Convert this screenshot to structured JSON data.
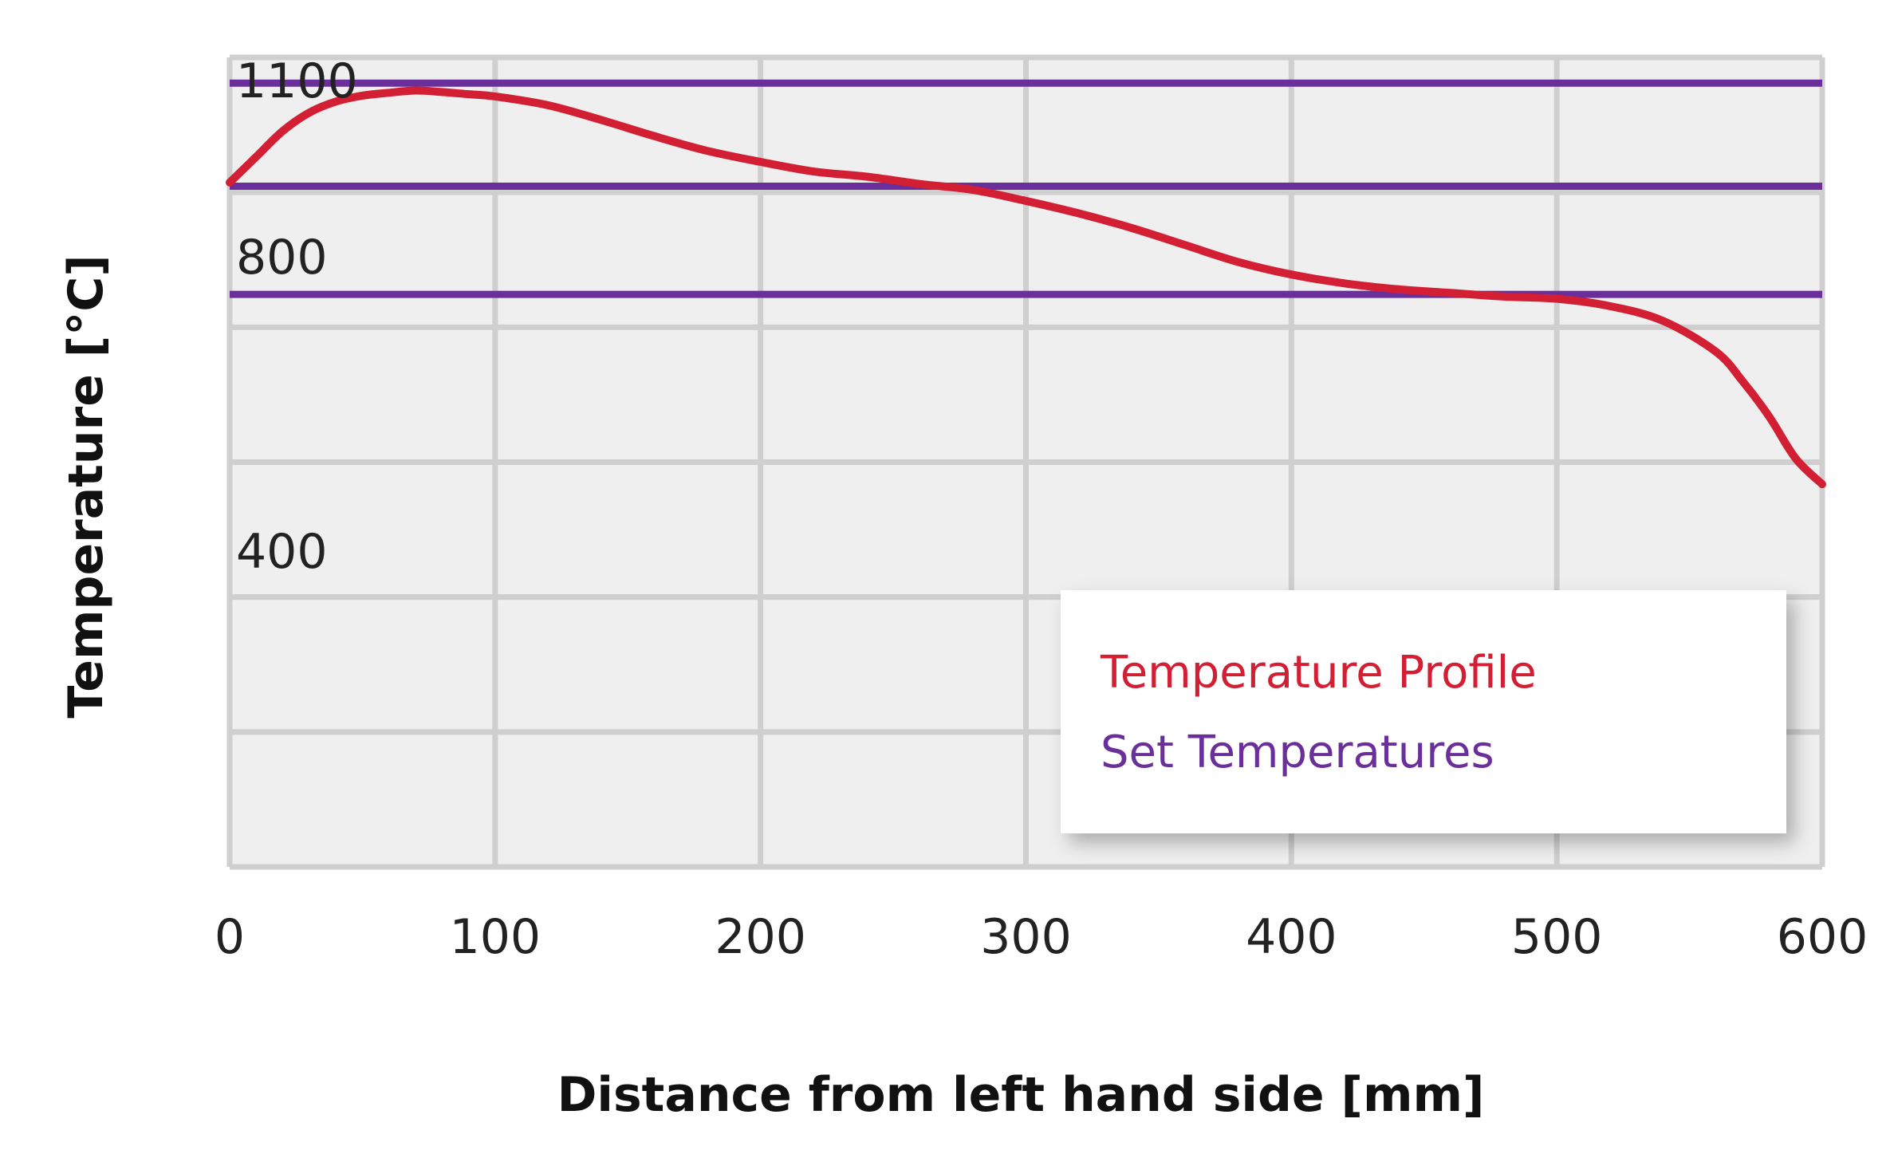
{
  "chart_data": {
    "type": "line",
    "title": "",
    "xlabel": "Distance from left hand side [mm]",
    "ylabel": "Temperature [°C]",
    "xlim": [
      0,
      600
    ],
    "ylim": [
      0,
      1100
    ],
    "x_ticks": [
      0,
      100,
      200,
      300,
      400,
      500,
      600
    ],
    "y_tick_labels": [
      {
        "value": 400,
        "label": "400"
      },
      {
        "value": 800,
        "label": "800"
      },
      {
        "value": 1100,
        "label": "1100"
      }
    ],
    "grid": true,
    "legend_position": "bottom-right",
    "series": [
      {
        "name": "Temperature Profile",
        "color": "#d21f33",
        "x": [
          0,
          10,
          20,
          30,
          40,
          50,
          60,
          70,
          80,
          90,
          100,
          120,
          140,
          160,
          180,
          200,
          220,
          240,
          260,
          280,
          300,
          320,
          340,
          360,
          380,
          400,
          420,
          440,
          460,
          480,
          500,
          520,
          540,
          560,
          570,
          580,
          590,
          600
        ],
        "y": [
          930,
          965,
          1000,
          1025,
          1040,
          1048,
          1052,
          1055,
          1053,
          1050,
          1047,
          1035,
          1015,
          993,
          973,
          958,
          945,
          938,
          928,
          920,
          905,
          888,
          868,
          845,
          822,
          805,
          793,
          785,
          780,
          775,
          772,
          762,
          742,
          700,
          660,
          612,
          555,
          520
        ]
      }
    ],
    "set_temperatures": {
      "name": "Set Temperatures",
      "color": "#6a2f9a",
      "values": [
        1065,
        925,
        778
      ]
    },
    "plot_background": "#efefef",
    "grid_color": "#cfcfcf"
  }
}
